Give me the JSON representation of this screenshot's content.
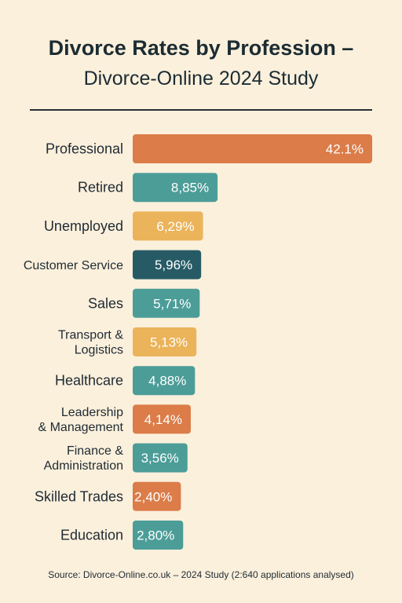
{
  "title_line1": "Divorce Rates by Profession –",
  "title_line2": "Divorce-Online 2024 Study",
  "source": "Source: Divorce-Online.co.uk – 2024 Study (2:640 applications analysed)",
  "colors": {
    "orange": "#db7c49",
    "teal": "#4c9d98",
    "yellow": "#ebb35a",
    "dark_teal": "#265b66",
    "label_text": "#ffffff"
  },
  "chart_data": {
    "type": "bar",
    "orientation": "horizontal",
    "xlim": [
      0,
      42.1
    ],
    "grid": false,
    "legend": "none",
    "categories": [
      "Professional",
      "Retired",
      "Unemployed",
      "Customer Service",
      "Sales",
      "Transport &\nLogistics",
      "Healthcare",
      "Leadership\n& Management",
      "Finance &\nAdministration",
      "Skilled Trades",
      "Education"
    ],
    "values": [
      42.1,
      8.85,
      6.29,
      5.96,
      5.71,
      5.13,
      4.88,
      4.14,
      3.56,
      2.4,
      2.8
    ],
    "data_labels": [
      "42.1%",
      "8,85%",
      "6,29%",
      "5,96%",
      "5,71%",
      "5,13%",
      "4,88%",
      "4,14%",
      "3,56%",
      "2,40%",
      "2,80%"
    ],
    "bar_colors": [
      "orange",
      "teal",
      "yellow",
      "dark_teal",
      "teal",
      "yellow",
      "teal",
      "orange",
      "teal",
      "orange",
      "teal"
    ]
  }
}
